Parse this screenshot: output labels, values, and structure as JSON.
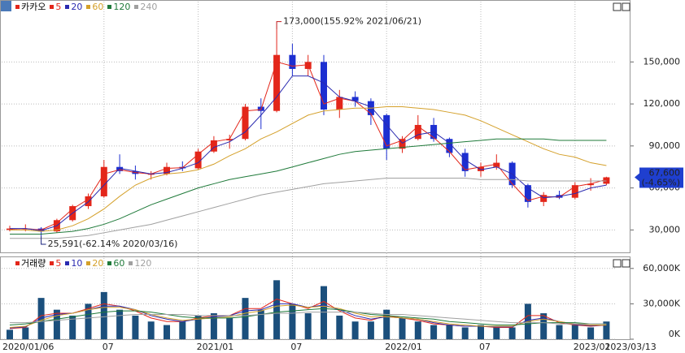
{
  "chart_data": [
    {
      "type": "candlestick",
      "title": "카카오",
      "open": [
        30000,
        31000,
        31000,
        29000,
        37000,
        47000,
        54000,
        75000,
        72000,
        70000,
        70000,
        75000,
        74000,
        86000,
        94000,
        95000,
        118000,
        115000,
        155000,
        145000,
        150000,
        116000,
        125000,
        122000,
        112000,
        88000,
        95000,
        105000,
        95000,
        85000,
        72000,
        75000,
        78000,
        62000,
        50000,
        55000,
        53000,
        62000,
        63000
      ],
      "high": [
        33000,
        34000,
        32000,
        38000,
        48000,
        56000,
        80000,
        84000,
        76000,
        72000,
        78000,
        79000,
        88000,
        97000,
        98000,
        120000,
        124000,
        173000,
        163000,
        155000,
        155000,
        130000,
        129000,
        124000,
        113000,
        97000,
        112000,
        110000,
        96000,
        88000,
        78000,
        84000,
        79000,
        63000,
        57000,
        58000,
        64000,
        67000,
        68000
      ],
      "low": [
        29000,
        29000,
        25591,
        28000,
        36000,
        45000,
        53000,
        70000,
        66000,
        66000,
        69000,
        72000,
        73000,
        85000,
        88000,
        94000,
        102000,
        114000,
        140000,
        140000,
        112000,
        110000,
        118000,
        105000,
        80000,
        85000,
        94000,
        93000,
        82000,
        68000,
        68000,
        73000,
        60000,
        46000,
        47000,
        52000,
        52000,
        58000,
        62000
      ],
      "close": [
        31000,
        31000,
        29000,
        37000,
        47000,
        54000,
        75000,
        72000,
        70000,
        70000,
        75000,
        74000,
        86000,
        94000,
        95000,
        118000,
        115000,
        155000,
        145000,
        150000,
        116000,
        125000,
        122000,
        112000,
        88000,
        95000,
        105000,
        95000,
        85000,
        72000,
        75000,
        78000,
        62000,
        50000,
        55000,
        53000,
        62000,
        63000,
        67600
      ],
      "up_color": "#e3261a",
      "down_color": "#1c2fd1",
      "series": [
        {
          "name": "5",
          "color": "#e3261a",
          "values": [
            30500,
            31000,
            30000,
            35000,
            45000,
            52000,
            70000,
            73000,
            71000,
            70000,
            74000,
            74500,
            84000,
            93000,
            95000,
            115000,
            116000,
            150000,
            147000,
            148000,
            120000,
            124000,
            122000,
            113000,
            90000,
            94000,
            104000,
            96000,
            86000,
            73000,
            75000,
            77000,
            63000,
            51000,
            54000,
            53500,
            61000,
            63000,
            66000
          ]
        },
        {
          "name": "20",
          "color": "#2a2ab0",
          "values": [
            31000,
            31000,
            29500,
            33000,
            42000,
            50000,
            62000,
            74000,
            72000,
            70000,
            71000,
            74000,
            78000,
            89000,
            93000,
            100000,
            112000,
            125000,
            140000,
            140000,
            135000,
            125000,
            122000,
            118000,
            105000,
            92000,
            98000,
            100000,
            92000,
            80000,
            73000,
            75000,
            70000,
            60000,
            53000,
            54000,
            56000,
            60000,
            62000
          ]
        },
        {
          "name": "60",
          "color": "#d4a02a",
          "values": [
            30000,
            30000,
            29000,
            30000,
            33000,
            38000,
            45000,
            54000,
            62000,
            67000,
            70000,
            71000,
            73000,
            77000,
            83000,
            88000,
            95000,
            100000,
            106000,
            112000,
            115000,
            116000,
            117000,
            117000,
            118000,
            118000,
            117000,
            116000,
            114000,
            112000,
            108000,
            103000,
            98000,
            93000,
            88000,
            84000,
            82000,
            78000,
            76000
          ]
        },
        {
          "name": "120",
          "color": "#1f7a3a",
          "values": [
            27000,
            27000,
            27000,
            28000,
            29000,
            31000,
            34000,
            38000,
            43000,
            48000,
            52000,
            56000,
            60000,
            63000,
            66000,
            68000,
            70000,
            72000,
            75000,
            78000,
            81000,
            84000,
            86000,
            87000,
            88000,
            89000,
            90000,
            91000,
            92000,
            93000,
            94000,
            95000,
            95000,
            95000,
            95000,
            94000,
            94000,
            94000,
            94000
          ]
        },
        {
          "name": "240",
          "color": "#a0a0a0",
          "values": [
            24000,
            24000,
            24000,
            24000,
            25000,
            26000,
            28000,
            30000,
            32000,
            34000,
            37000,
            40000,
            43000,
            46000,
            49000,
            52000,
            55000,
            57000,
            59000,
            61000,
            63000,
            64000,
            65000,
            66000,
            67000,
            67000,
            67000,
            67000,
            67000,
            67000,
            66000,
            66000,
            66000,
            65000,
            65000,
            65000,
            65000,
            65000,
            65000
          ]
        }
      ],
      "ylim": [
        13400,
        189600
      ],
      "yticks": [
        {
          "value": 30000,
          "label": "30,000"
        },
        {
          "value": 60000,
          "label": "60,000"
        },
        {
          "value": 90000,
          "label": "90,000"
        },
        {
          "value": 120000,
          "label": "120,000"
        },
        {
          "value": 150000,
          "label": "150,000"
        }
      ],
      "grid": true,
      "annotations": [
        {
          "text": "173,000(155.92% 2021/06/21)",
          "index": 17,
          "value": 173000,
          "color": "#c0181a"
        },
        {
          "text": "25,591(-62.14% 2020/03/16)",
          "index": 2,
          "value": 25591,
          "color": "#1a237e"
        }
      ],
      "current": {
        "value": 67600,
        "label": "67,600",
        "change": "(-4.65%)",
        "color": "#1f3fcf"
      }
    },
    {
      "type": "bar",
      "title": "거래량",
      "categories": [
        "2020/01/06",
        null,
        null,
        null,
        null,
        null,
        "07",
        null,
        null,
        null,
        null,
        null,
        "2021/01",
        null,
        null,
        null,
        null,
        null,
        "07",
        null,
        null,
        null,
        null,
        null,
        "2022/01",
        null,
        null,
        null,
        null,
        null,
        "07",
        null,
        null,
        null,
        null,
        null,
        "2023/01",
        null,
        "2023/03/13"
      ],
      "values": [
        8000,
        10000,
        35000,
        25000,
        20000,
        30000,
        40000,
        25000,
        20000,
        15000,
        12000,
        15000,
        20000,
        22000,
        18000,
        35000,
        25000,
        50000,
        30000,
        22000,
        45000,
        20000,
        15000,
        15000,
        25000,
        18000,
        15000,
        12000,
        12000,
        10000,
        12000,
        10000,
        10000,
        30000,
        22000,
        12000,
        12000,
        10000,
        15000
      ],
      "color": "#1b4f7c",
      "series": [
        {
          "name": "5",
          "color": "#e3261a",
          "values": [
            9000,
            10000,
            20000,
            22000,
            22000,
            26000,
            30000,
            28000,
            24000,
            18000,
            15000,
            15000,
            18000,
            20000,
            20000,
            26000,
            26000,
            34000,
            30000,
            26000,
            32000,
            24000,
            18000,
            16000,
            20000,
            18000,
            16000,
            13000,
            12000,
            11000,
            11000,
            10000,
            10000,
            20000,
            20000,
            14000,
            12000,
            11000,
            12000
          ]
        },
        {
          "name": "10",
          "color": "#2a2ab0",
          "values": [
            9500,
            10500,
            18000,
            21000,
            22000,
            25000,
            28000,
            28000,
            25000,
            20000,
            17000,
            15000,
            17000,
            19000,
            20000,
            24000,
            25000,
            30000,
            30000,
            27000,
            29000,
            25000,
            20000,
            17000,
            19000,
            18000,
            17000,
            14000,
            12000,
            11000,
            11000,
            10500,
            10500,
            16000,
            18000,
            15000,
            12500,
            11500,
            12000
          ]
        },
        {
          "name": "20",
          "color": "#d4a02a",
          "values": [
            10000,
            11000,
            16000,
            20000,
            22000,
            25000,
            27000,
            27000,
            25000,
            21000,
            18000,
            16000,
            17000,
            18000,
            19000,
            22000,
            24000,
            28000,
            29000,
            27000,
            28000,
            26000,
            22000,
            19000,
            19000,
            18000,
            17000,
            15000,
            13000,
            12000,
            11000,
            11000,
            11000,
            15000,
            17000,
            15000,
            13000,
            12000,
            12000
          ]
        },
        {
          "name": "60",
          "color": "#1f7a3a",
          "values": [
            12000,
            13000,
            15000,
            17000,
            19000,
            21000,
            23000,
            24000,
            24000,
            23000,
            21000,
            19000,
            18000,
            18000,
            18000,
            19000,
            21000,
            23000,
            24000,
            25000,
            26000,
            25000,
            23000,
            21000,
            20000,
            19000,
            18000,
            17000,
            15000,
            14000,
            13000,
            12000,
            12000,
            13000,
            14000,
            14000,
            14000,
            13000,
            13000
          ]
        },
        {
          "name": "120",
          "color": "#a0a0a0",
          "values": [
            14000,
            14000,
            15000,
            16000,
            17000,
            18000,
            19000,
            20000,
            21000,
            21000,
            21000,
            21000,
            20000,
            20000,
            20000,
            20000,
            21000,
            22000,
            22000,
            23000,
            23000,
            23000,
            23000,
            22000,
            21000,
            21000,
            20000,
            19000,
            18000,
            17000,
            16000,
            15000,
            14000,
            14000,
            14000,
            13000,
            13000,
            13000,
            13000
          ]
        }
      ],
      "ylim": [
        0,
        68800
      ],
      "yticks": [
        {
          "value": 0,
          "label": "0K"
        },
        {
          "value": 30000,
          "label": "30,000K"
        },
        {
          "value": 60000,
          "label": "60,000K"
        }
      ],
      "grid": true
    }
  ]
}
